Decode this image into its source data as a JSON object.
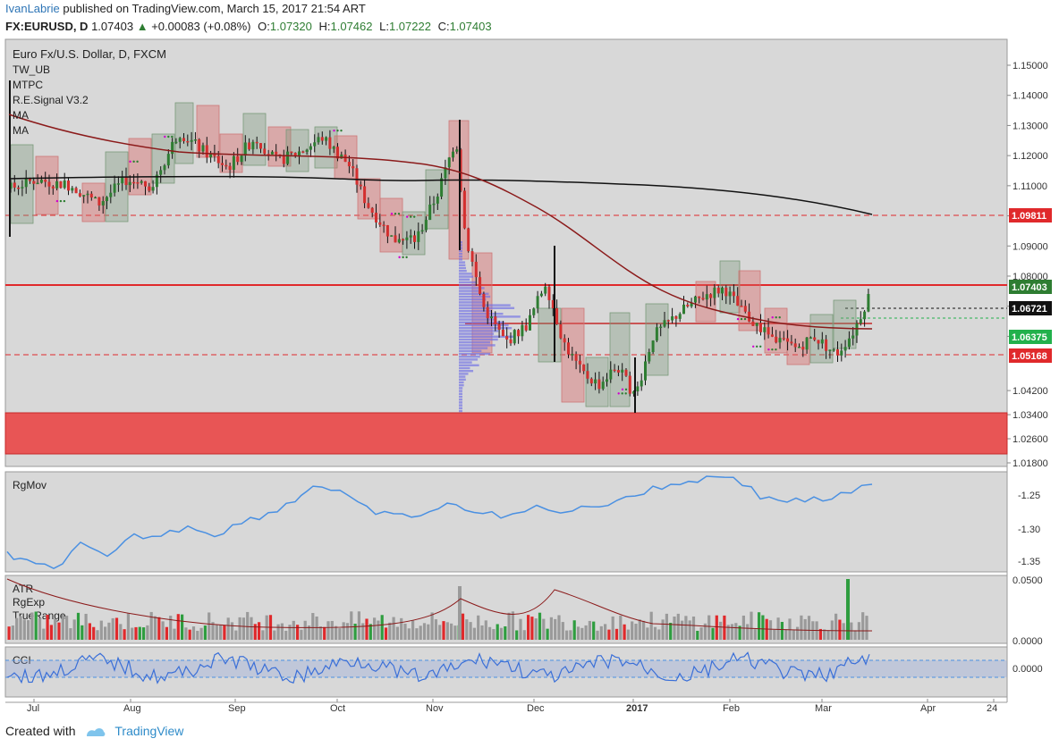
{
  "header": {
    "author": "IvanLabrie",
    "published_text": "published on TradingView.com, March 15, 2017 21:54 ART",
    "symbol": "FX:EURUSD, D",
    "last": "1.07403",
    "change": "+0.00083 (+0.08%)",
    "o_label": "O:",
    "o": "1.07320",
    "h_label": "H:",
    "h": "1.07462",
    "l_label": "L:",
    "l": "1.07222",
    "c_label": "C:",
    "c": "1.07403"
  },
  "main_panel": {
    "title": "Euro Fx/U.S. Dollar, D, FXCM",
    "indicators": [
      "TW_UB",
      "MTPC",
      "R.E.Signal V3.2",
      "MA",
      "MA"
    ],
    "price_ticks": [
      "1.15000",
      "1.14000",
      "1.13000",
      "1.12000",
      "1.11000",
      "1.10000",
      "1.09000",
      "1.08000",
      "1.07000",
      "1.06000",
      "1.04200",
      "1.03400",
      "1.02600",
      "1.01800"
    ],
    "price_labels": [
      {
        "text": "1.09811",
        "bg": "#e0292b"
      },
      {
        "text": "1.07403",
        "bg": "#2e7d32"
      },
      {
        "text": "1.06721",
        "bg": "#111111"
      },
      {
        "text": "1.06375",
        "bg": "#22b14c"
      },
      {
        "text": "1.05168",
        "bg": "#e0292b"
      }
    ]
  },
  "rgmov_panel": {
    "title": "RgMov",
    "ticks": [
      "-1.25",
      "-1.30",
      "-1.35"
    ]
  },
  "atr_panel": {
    "titles": [
      "ATR",
      "RgExp",
      "TrueRange"
    ],
    "ticks": [
      "0.0500",
      "0.0000"
    ]
  },
  "cci_panel": {
    "title": "CCI",
    "ticks": [
      "0.0000"
    ]
  },
  "time_axis": [
    "Jul",
    "Aug",
    "Sep",
    "Oct",
    "Nov",
    "Dec",
    "2017",
    "Feb",
    "Mar",
    "Apr",
    "24"
  ],
  "footer": {
    "created_with": "Created with",
    "brand": "TradingView"
  },
  "colors": {
    "up": "#2e7d32",
    "down": "#d32f2f",
    "ma_long": "#111111",
    "ma_short": "#8b1a1a",
    "line": "#4a90e2",
    "zone": "#e85555",
    "panel_bg": "#d8d8d8"
  }
}
